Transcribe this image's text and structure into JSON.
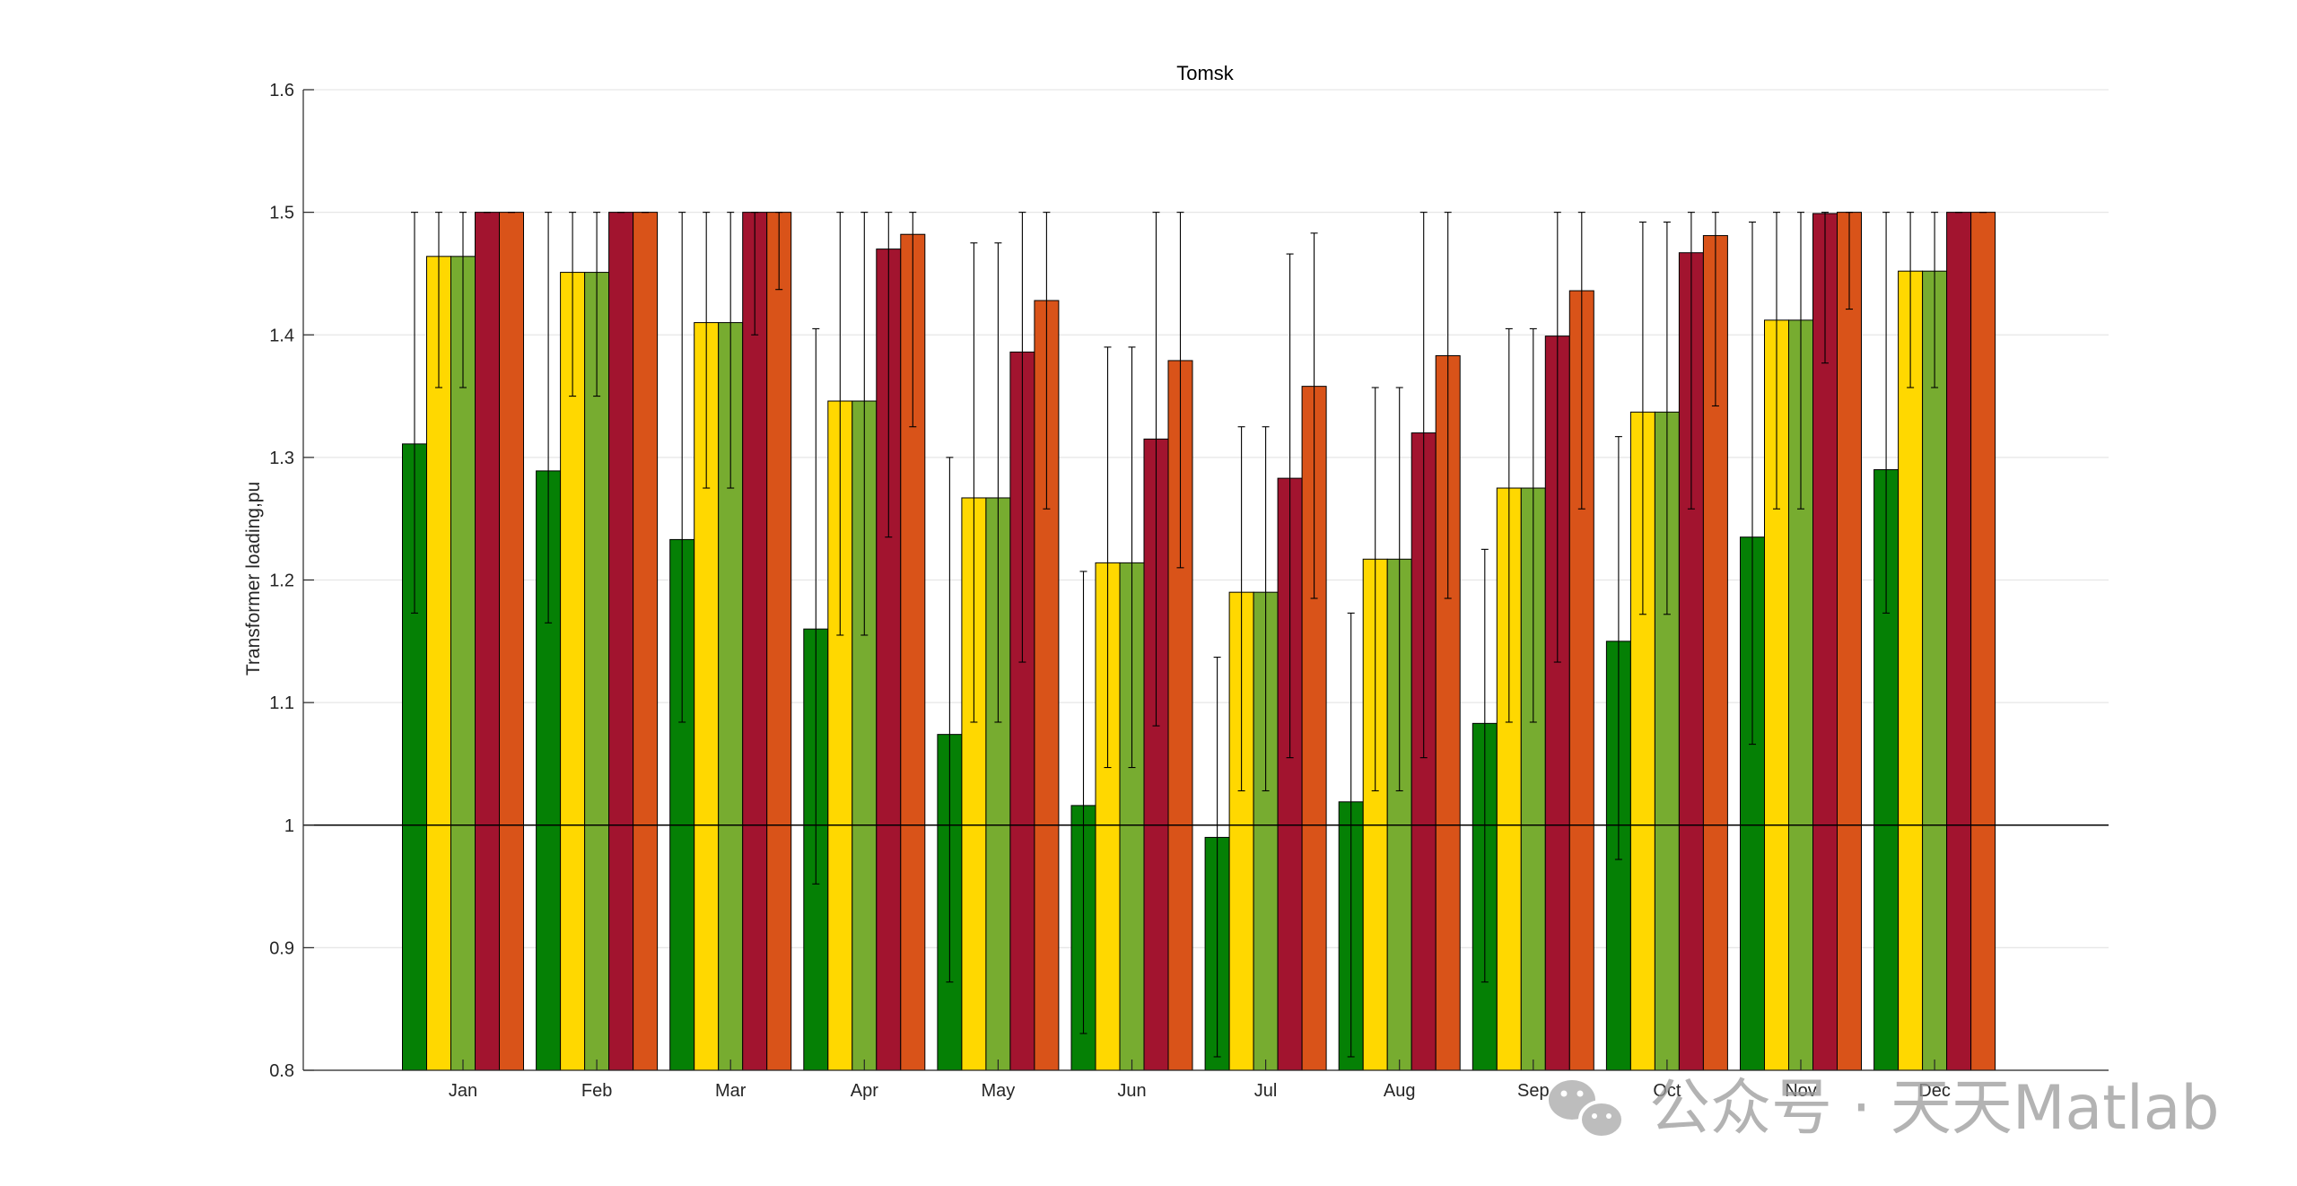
{
  "chart_data": {
    "type": "bar",
    "title": "Tomsk",
    "xlabel": "",
    "ylabel": "Transformer loading,pu",
    "ylim": [
      0.8,
      1.6
    ],
    "yticks": [
      0.8,
      0.9,
      1,
      1.1,
      1.2,
      1.3,
      1.4,
      1.5,
      1.6
    ],
    "ytick_labels": [
      "0.8",
      "0.9",
      "1",
      "1.1",
      "1.2",
      "1.3",
      "1.4",
      "1.5",
      "1.6"
    ],
    "grid": true,
    "reference_line": 1.0,
    "categories": [
      "Jan",
      "Feb",
      "Mar",
      "Apr",
      "May",
      "Jun",
      "Jul",
      "Aug",
      "Sep",
      "Oct",
      "Nov",
      "Dec"
    ],
    "series": [
      {
        "color": "#058005",
        "values": [
          1.311,
          1.289,
          1.233,
          1.16,
          1.074,
          1.016,
          0.99,
          1.019,
          1.083,
          1.15,
          1.235,
          1.29
        ],
        "error_low": [
          1.173,
          1.165,
          1.084,
          0.952,
          0.872,
          0.83,
          0.811,
          0.811,
          0.872,
          0.972,
          1.066,
          1.173
        ],
        "error_high": [
          1.5,
          1.5,
          1.5,
          1.405,
          1.3,
          1.207,
          1.137,
          1.173,
          1.225,
          1.317,
          1.492,
          1.5
        ]
      },
      {
        "color": "#FFD800",
        "values": [
          1.464,
          1.451,
          1.41,
          1.346,
          1.267,
          1.214,
          1.19,
          1.217,
          1.275,
          1.337,
          1.412,
          1.452
        ],
        "error_low": [
          1.357,
          1.35,
          1.275,
          1.155,
          1.084,
          1.047,
          1.028,
          1.028,
          1.084,
          1.172,
          1.258,
          1.357
        ],
        "error_high": [
          1.5,
          1.5,
          1.5,
          1.5,
          1.475,
          1.39,
          1.325,
          1.357,
          1.405,
          1.492,
          1.5,
          1.5
        ]
      },
      {
        "color": "#77AC30",
        "values": [
          1.464,
          1.451,
          1.41,
          1.346,
          1.267,
          1.214,
          1.19,
          1.217,
          1.275,
          1.337,
          1.412,
          1.452
        ],
        "error_low": [
          1.357,
          1.35,
          1.275,
          1.155,
          1.084,
          1.047,
          1.028,
          1.028,
          1.084,
          1.172,
          1.258,
          1.357
        ],
        "error_high": [
          1.5,
          1.5,
          1.5,
          1.5,
          1.475,
          1.39,
          1.325,
          1.357,
          1.405,
          1.492,
          1.5,
          1.5
        ]
      },
      {
        "color": "#A2142F",
        "values": [
          1.5,
          1.5,
          1.5,
          1.47,
          1.386,
          1.315,
          1.283,
          1.32,
          1.399,
          1.467,
          1.499,
          1.5
        ],
        "error_low": [
          1.5,
          1.5,
          1.4,
          1.235,
          1.133,
          1.081,
          1.055,
          1.055,
          1.133,
          1.258,
          1.377,
          1.5
        ],
        "error_high": [
          1.5,
          1.5,
          1.5,
          1.5,
          1.5,
          1.5,
          1.466,
          1.5,
          1.5,
          1.5,
          1.5,
          1.5
        ]
      },
      {
        "color": "#D95319",
        "values": [
          1.5,
          1.5,
          1.5,
          1.482,
          1.428,
          1.379,
          1.358,
          1.383,
          1.436,
          1.481,
          1.5,
          1.5
        ],
        "error_low": [
          1.5,
          1.5,
          1.437,
          1.325,
          1.258,
          1.21,
          1.185,
          1.185,
          1.258,
          1.342,
          1.421,
          1.5
        ],
        "error_high": [
          1.5,
          1.5,
          1.5,
          1.5,
          1.5,
          1.5,
          1.483,
          1.5,
          1.5,
          1.5,
          1.5,
          1.5
        ]
      }
    ]
  },
  "watermark": {
    "text": "公众号 · 天天Matlab",
    "icon": "wechat-icon"
  }
}
